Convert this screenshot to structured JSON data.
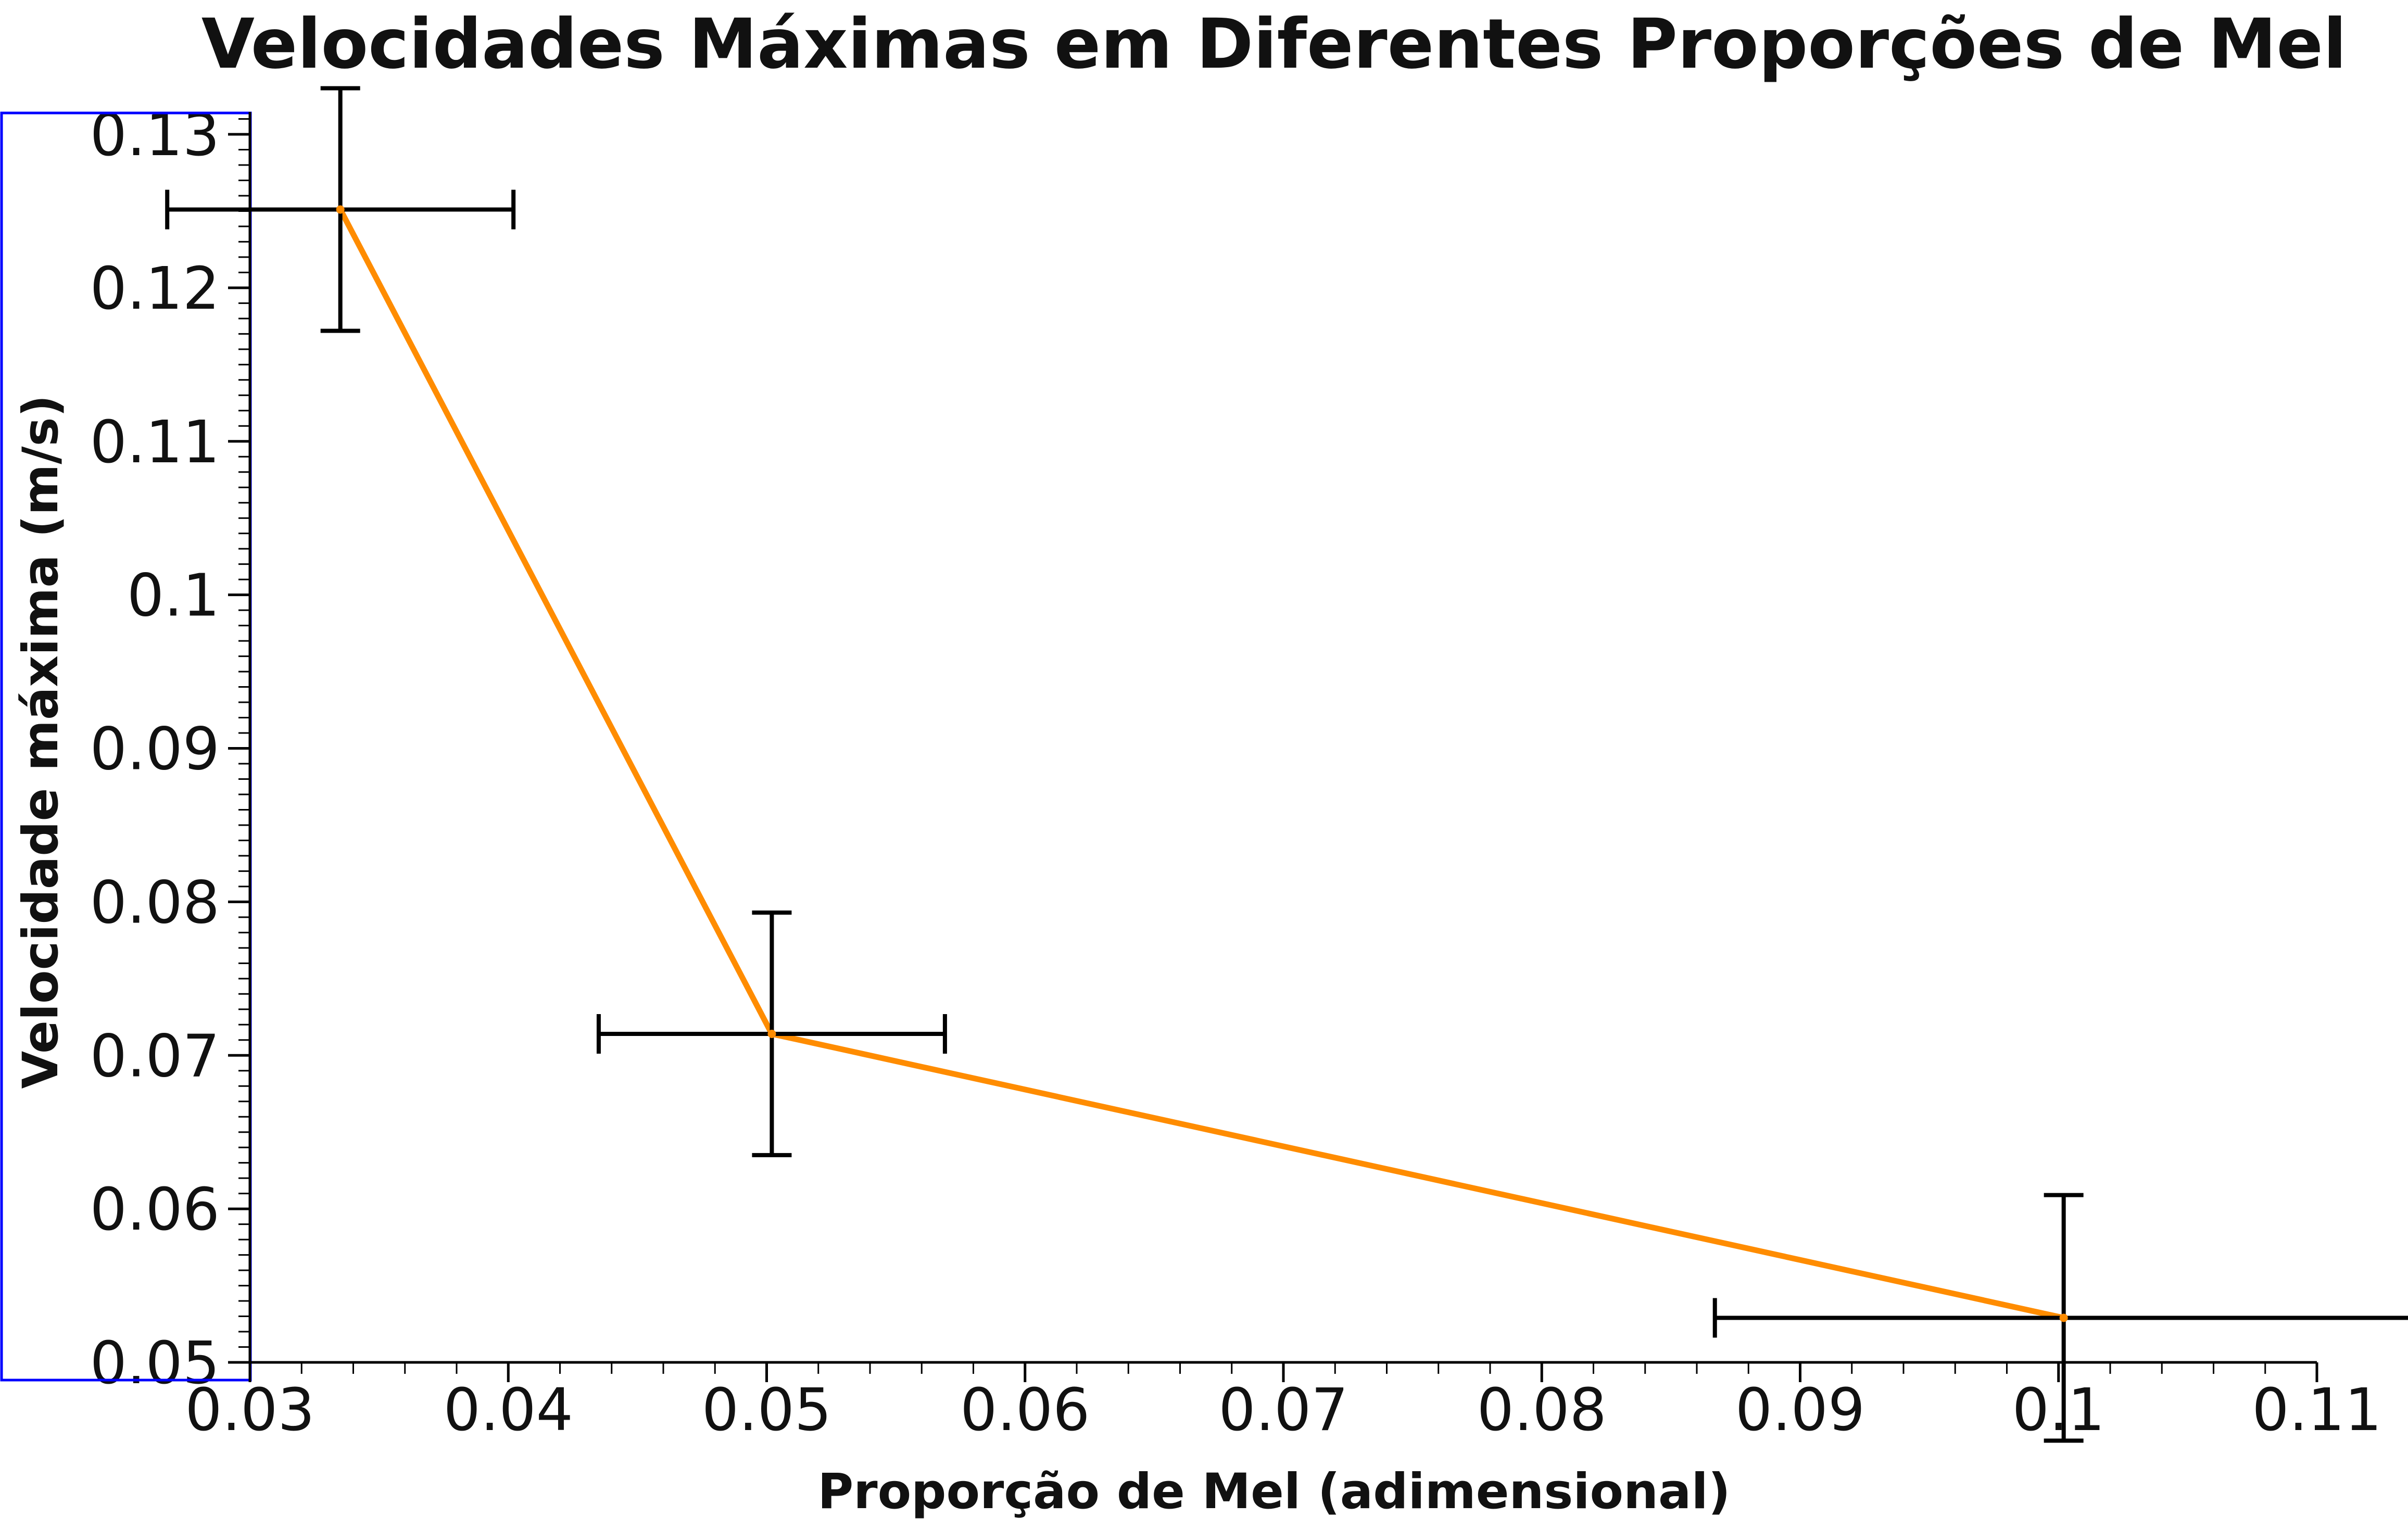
{
  "chart_data": {
    "type": "line",
    "title": "Velocidades Máximas em Diferentes Proporções de Mel",
    "xlabel": "Proporção de Mel (adimensional)",
    "ylabel": "Velocidade máxima (m/s)",
    "xlim": [
      0.03,
      0.11
    ],
    "ylim": [
      0.05,
      0.13
    ],
    "x_ticks": [
      0.03,
      0.04,
      0.05,
      0.06,
      0.07,
      0.08,
      0.09,
      0.1,
      0.11
    ],
    "x_tick_labels": [
      "0.03",
      "0.04",
      "0.05",
      "0.06",
      "0.07",
      "0.08",
      "0.09",
      "0.1",
      "0.11"
    ],
    "y_ticks": [
      0.05,
      0.06,
      0.07,
      0.08,
      0.09,
      0.1,
      0.11,
      0.12,
      0.13
    ],
    "y_tick_labels": [
      "0.05",
      "0.06",
      "0.07",
      "0.08",
      "0.09",
      "0.1",
      "0.11",
      "0.12",
      "0.13"
    ],
    "grid": false,
    "series": [
      {
        "color": "#ff8c00",
        "x": [
          0.0335,
          0.0502,
          0.1002
        ],
        "y": [
          0.1251,
          0.0714,
          0.0529
        ],
        "x_err": [
          0.0067,
          0.0067,
          0.0135
        ],
        "y_err": [
          0.0079,
          0.0079,
          0.008
        ]
      }
    ],
    "error_bar_color": "#000000",
    "axis_color": "#000000",
    "highlight_box_color": "#0000ff"
  }
}
